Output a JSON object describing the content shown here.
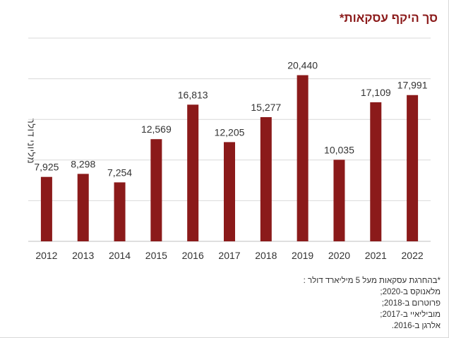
{
  "chart_data": {
    "type": "bar",
    "title": "סך היקף עסקאות*",
    "ylabel": "מליוני דולר",
    "xlabel": "",
    "categories": [
      "2012",
      "2013",
      "2014",
      "2015",
      "2016",
      "2017",
      "2018",
      "2019",
      "2020",
      "2021",
      "2022"
    ],
    "values": [
      7925,
      8298,
      7254,
      12569,
      16813,
      12205,
      15277,
      20440,
      10035,
      17109,
      17991
    ],
    "value_labels": [
      "7,925",
      "8,298",
      "7,254",
      "12,569",
      "16,813",
      "12,205",
      "15,277",
      "20,440",
      "10,035",
      "17,109",
      "17,991"
    ],
    "ylim": [
      0,
      25000
    ],
    "grid": true,
    "bar_color": "#8b1a1a"
  },
  "footnote": {
    "lines": [
      "*בהחרגת עסקאות מעל 5 מיליארד דולר :",
      "מלאנוקס ב-2020;",
      "פרוטרום ב-2018;",
      "מוביליאיי ב-2017;",
      "אלרגן ב-2016."
    ]
  },
  "colors": {
    "title": "#8b1a1a",
    "bar": "#8b1a1a",
    "grid": "#d9d9d9",
    "text": "#333333"
  }
}
